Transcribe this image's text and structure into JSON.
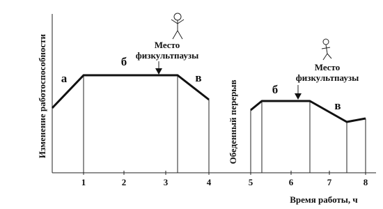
{
  "y_axis_label": "Изменение работоспособности",
  "lunch_label": "Обеденный перерыв",
  "x_axis_label": "Время работы, ч",
  "x_tick_labels": [
    "1",
    "2",
    "3",
    "4",
    "5",
    "6",
    "7",
    "8"
  ],
  "morning": {
    "phase_labels": [
      "а",
      "б",
      "в"
    ],
    "annotation": [
      "Место",
      "физкультпаузы"
    ]
  },
  "afternoon": {
    "phase_labels": [
      "б",
      "в"
    ],
    "annotation": [
      "Место",
      "физкультпаузы"
    ]
  }
}
